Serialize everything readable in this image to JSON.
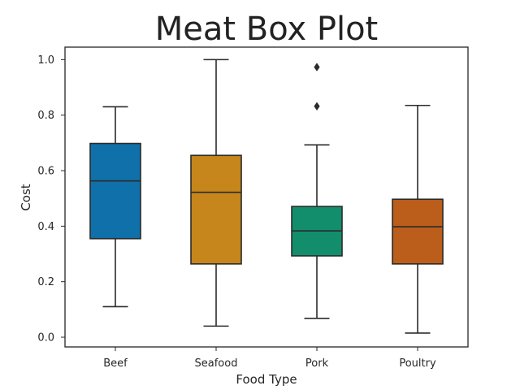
{
  "chart_data": {
    "type": "box",
    "title": "Meat Box Plot",
    "xlabel": "Food Type",
    "ylabel": "Cost",
    "ylim": [
      -0.035,
      1.045
    ],
    "yticks": [
      "0.0",
      "0.2",
      "0.4",
      "0.6",
      "0.8",
      "1.0"
    ],
    "ytick_values": [
      0.0,
      0.2,
      0.4,
      0.6,
      0.8,
      1.0
    ],
    "grid": false,
    "categories": [
      "Beef",
      "Seafood",
      "Pork",
      "Poultry"
    ],
    "boxes": [
      {
        "name": "Beef",
        "color": "#1070AA",
        "whisker_low": 0.11,
        "q1": 0.355,
        "median": 0.563,
        "q3": 0.698,
        "whisker_high": 0.83,
        "outliers": []
      },
      {
        "name": "Seafood",
        "color": "#C6861B",
        "whisker_low": 0.04,
        "q1": 0.264,
        "median": 0.522,
        "q3": 0.655,
        "whisker_high": 1.0,
        "outliers": []
      },
      {
        "name": "Pork",
        "color": "#138E6D",
        "whisker_low": 0.068,
        "q1": 0.293,
        "median": 0.383,
        "q3": 0.471,
        "whisker_high": 0.693,
        "outliers": [
          0.832,
          0.973
        ]
      },
      {
        "name": "Poultry",
        "color": "#BC5E1B",
        "whisker_low": 0.015,
        "q1": 0.264,
        "median": 0.398,
        "q3": 0.497,
        "whisker_high": 0.835,
        "outliers": []
      }
    ]
  }
}
